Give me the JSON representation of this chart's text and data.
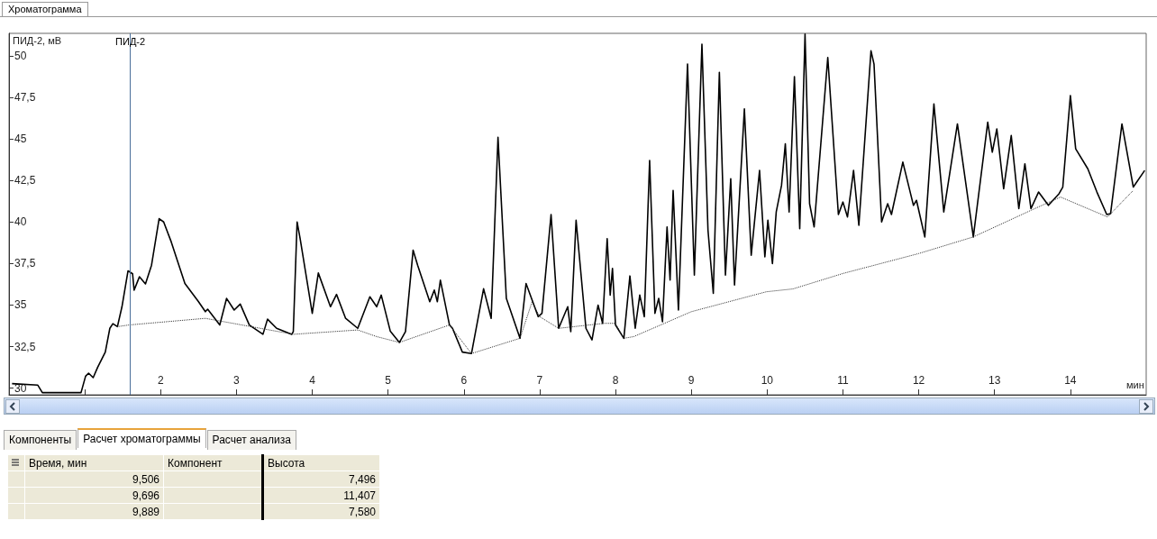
{
  "chart_data": [
    {
      "type": "line",
      "title": "Хроматограмма",
      "xlabel": "мин",
      "ylabel": "ПИД-2, мВ",
      "xlim": [
        0,
        15
      ],
      "ylim": [
        29.6,
        51.35
      ],
      "xticks": [
        {
          "value": 1,
          "label": null
        },
        2,
        3,
        4,
        5,
        6,
        7,
        8,
        9,
        10,
        11,
        12,
        13,
        14
      ],
      "yticks": [
        30,
        {
          "value": 32.5,
          "label": "32,5"
        },
        35,
        {
          "value": 37.5,
          "label": "37,5"
        },
        40,
        {
          "value": 42.5,
          "label": "42,5"
        },
        45,
        {
          "value": 47.5,
          "label": "47,5"
        },
        50
      ],
      "grid": false,
      "marker": "none",
      "ref_lines": [
        {
          "axis": "x",
          "value": 1.6,
          "label": "ПИД-2",
          "color": "#4a6f9a"
        }
      ],
      "series": [
        {
          "color": "#000000",
          "line_style": "solid",
          "x": [
            0.04,
            0.38,
            0.44,
            0.95,
            1.01,
            1.05,
            1.11,
            1.17,
            1.27,
            1.33,
            1.37,
            1.43,
            1.49,
            1.57,
            1.63,
            1.65,
            1.72,
            1.8,
            1.88,
            1.98,
            2.04,
            2.14,
            2.32,
            2.5,
            2.59,
            2.62,
            2.78,
            2.87,
            2.97,
            3.05,
            3.17,
            3.35,
            3.41,
            3.53,
            3.73,
            3.75,
            3.8,
            3.84,
            4.0,
            4.08,
            4.24,
            4.32,
            4.44,
            4.6,
            4.76,
            4.85,
            4.91,
            5.03,
            5.15,
            5.23,
            5.33,
            5.39,
            5.55,
            5.61,
            5.65,
            5.69,
            5.81,
            5.85,
            5.98,
            6.1,
            6.26,
            6.36,
            6.45,
            6.56,
            6.74,
            6.82,
            6.98,
            7.03,
            7.15,
            7.25,
            7.37,
            7.41,
            7.48,
            7.61,
            7.69,
            7.77,
            7.83,
            7.89,
            7.93,
            7.96,
            8.0,
            8.11,
            8.19,
            8.26,
            8.32,
            8.38,
            8.45,
            8.52,
            8.57,
            8.62,
            8.68,
            8.72,
            8.76,
            8.83,
            8.95,
            9.04,
            9.14,
            9.22,
            9.29,
            9.37,
            9.45,
            9.52,
            9.57,
            9.7,
            9.79,
            9.9,
            9.97,
            10.01,
            10.07,
            10.12,
            10.19,
            10.24,
            10.29,
            10.36,
            10.43,
            10.5,
            10.56,
            10.62,
            10.8,
            10.94,
            11.0,
            11.06,
            11.14,
            11.21,
            11.37,
            11.41,
            11.51,
            11.59,
            11.64,
            11.79,
            11.93,
            11.97,
            12.08,
            12.2,
            12.33,
            12.51,
            12.72,
            12.91,
            12.97,
            13.03,
            13.12,
            13.22,
            13.32,
            13.4,
            13.48,
            13.58,
            13.71,
            13.85,
            13.9,
            14.0,
            14.07,
            14.23,
            14.35,
            14.48,
            14.53,
            14.68,
            14.83,
            14.98
          ],
          "values": [
            30.27,
            30.18,
            29.73,
            29.73,
            30.72,
            30.9,
            30.63,
            31.26,
            32.17,
            33.6,
            33.88,
            33.7,
            34.9,
            37.06,
            36.88,
            35.9,
            36.7,
            36.27,
            37.4,
            40.2,
            40.0,
            38.8,
            36.3,
            35.2,
            34.6,
            34.75,
            33.8,
            35.4,
            34.7,
            35.06,
            33.8,
            33.24,
            34.15,
            33.6,
            33.24,
            33.4,
            40.0,
            39.0,
            34.5,
            36.93,
            34.9,
            35.64,
            34.2,
            33.6,
            35.5,
            34.9,
            35.6,
            33.42,
            32.75,
            33.4,
            38.3,
            37.4,
            35.2,
            35.9,
            35.2,
            36.5,
            33.8,
            33.6,
            32.17,
            32.08,
            35.98,
            34.2,
            45.1,
            35.4,
            33.0,
            36.3,
            34.3,
            34.5,
            40.45,
            33.6,
            34.9,
            33.4,
            40.1,
            33.6,
            32.9,
            35.0,
            33.9,
            39.0,
            35.6,
            37.2,
            33.8,
            33.0,
            36.75,
            33.6,
            35.6,
            34.3,
            43.7,
            34.5,
            35.4,
            34.0,
            39.7,
            36.5,
            41.9,
            34.7,
            49.5,
            36.8,
            50.7,
            39.5,
            35.7,
            49.0,
            36.8,
            42.6,
            36.2,
            46.8,
            38.0,
            43.1,
            37.9,
            40.1,
            37.5,
            40.6,
            42.2,
            44.7,
            40.6,
            48.75,
            39.6,
            51.3,
            41.1,
            39.7,
            49.9,
            40.45,
            41.2,
            40.3,
            43.1,
            39.8,
            50.3,
            49.5,
            40.0,
            41.1,
            40.45,
            43.6,
            41.0,
            41.3,
            39.1,
            47.1,
            40.6,
            45.9,
            39.1,
            46.0,
            44.2,
            45.6,
            42.0,
            45.2,
            40.8,
            43.5,
            40.8,
            41.8,
            41.0,
            41.7,
            42.1,
            47.6,
            44.4,
            43.2,
            41.8,
            40.45,
            40.5,
            45.9,
            42.1,
            43.1
          ]
        },
        {
          "color": "#333333",
          "line_style": "dotted",
          "x": [
            1.43,
            1.58,
            2.59,
            3.75,
            4.6,
            4.85,
            5.15,
            5.81,
            6.1,
            6.74,
            6.9,
            7.0,
            7.25,
            7.85,
            8.0,
            8.11,
            8.24,
            9.0,
            9.99,
            10.34,
            11.0,
            12.0,
            12.72,
            13.48,
            13.87,
            14.49,
            14.83
          ],
          "values": [
            33.7,
            33.8,
            34.2,
            33.24,
            33.5,
            33.1,
            32.75,
            33.8,
            32.08,
            33.0,
            35.2,
            34.3,
            33.6,
            33.9,
            33.9,
            33.0,
            33.1,
            34.6,
            35.8,
            35.97,
            36.9,
            38.1,
            39.1,
            40.7,
            41.5,
            40.3,
            41.9
          ]
        }
      ]
    },
    {
      "type": "other",
      "annotations": [
        "Компоненты",
        "Расчет хроматограммы",
        "Расчет анализа",
        "Время, мин",
        "Компонент",
        "Высота",
        "9,506",
        "7,496",
        "9,696",
        "11,407",
        "9,889",
        "7,580"
      ]
    }
  ]
}
